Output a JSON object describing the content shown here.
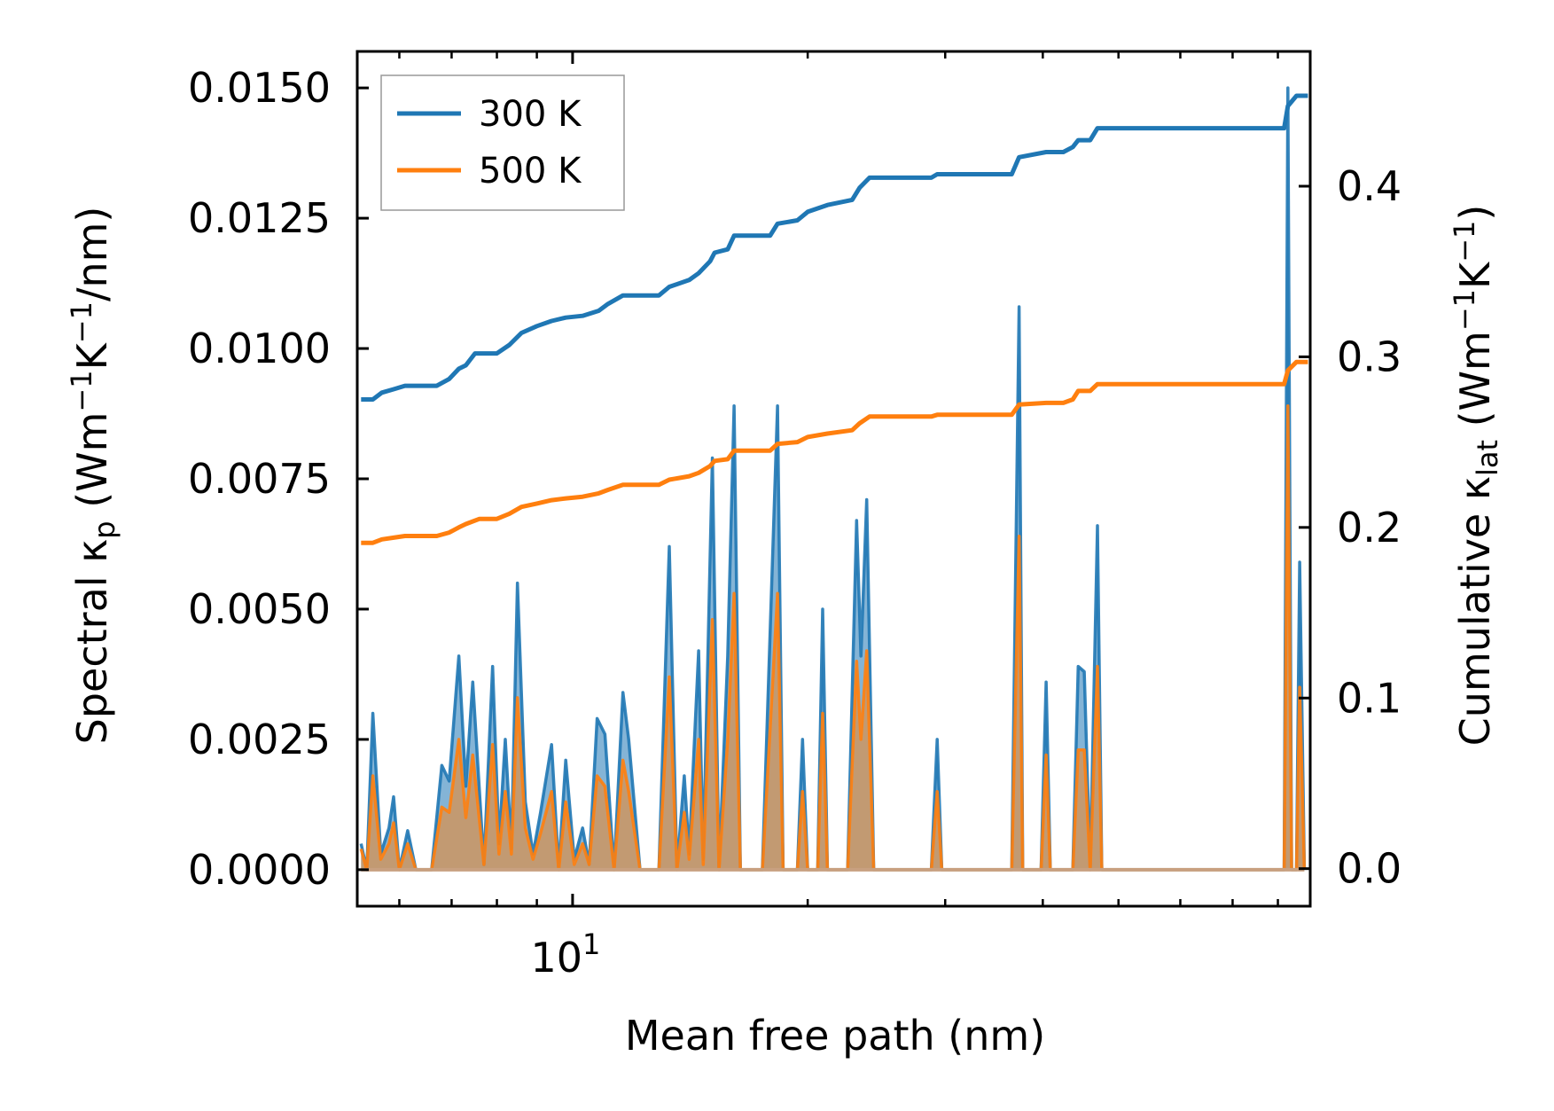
{
  "chart_data": {
    "type": "line",
    "xscale": "log",
    "xlabel": "Mean free path (nm)",
    "xlim": [
      5.3,
      88
    ],
    "x_tick_labels": [
      {
        "value": 10,
        "label": "10",
        "sup": "1"
      }
    ],
    "y_left": {
      "label_parts": [
        "Spectral κ",
        "p",
        " (Wm",
        "−1",
        "K",
        "−1",
        "/nm)"
      ],
      "lim": [
        -0.0007,
        0.0157
      ],
      "ticks": [
        0.0,
        0.0025,
        0.005,
        0.0075,
        0.01,
        0.0125,
        0.015
      ],
      "tick_labels": [
        "0.0000",
        "0.0025",
        "0.0050",
        "0.0075",
        "0.0100",
        "0.0125",
        "0.0150"
      ]
    },
    "y_right": {
      "label_parts": [
        "Cumulative κ",
        "lat",
        " (Wm",
        "−1",
        "K",
        "−1",
        ")"
      ],
      "lim": [
        -0.022,
        0.479
      ],
      "ticks": [
        0.0,
        0.1,
        0.2,
        0.3,
        0.4
      ],
      "tick_labels": [
        "0.0",
        "0.1",
        "0.2",
        "0.3",
        "0.4"
      ]
    },
    "legend": {
      "position": "top-left",
      "entries": [
        {
          "label": "300 K",
          "color": "#1f77b4"
        },
        {
          "label": "500 K",
          "color": "#ff7f0e"
        }
      ]
    },
    "series": [
      {
        "name": "300 K",
        "color": "#1f77b4",
        "spectral": [
          [
            5.36,
            0.0005
          ],
          [
            5.45,
            0
          ],
          [
            5.55,
            0.003
          ],
          [
            5.68,
            0.0003
          ],
          [
            5.82,
            0.0008
          ],
          [
            5.9,
            0.0014
          ],
          [
            6.0,
            0
          ],
          [
            6.15,
            0.00075
          ],
          [
            6.3,
            0
          ],
          [
            6.6,
            0
          ],
          [
            6.8,
            0.002
          ],
          [
            6.95,
            0.0017
          ],
          [
            7.15,
            0.0041
          ],
          [
            7.3,
            0.0016
          ],
          [
            7.45,
            0.0036
          ],
          [
            7.7,
            0.0001
          ],
          [
            7.9,
            0.0039
          ],
          [
            8.05,
            0.0005
          ],
          [
            8.2,
            0.0025
          ],
          [
            8.35,
            0.0004
          ],
          [
            8.5,
            0.0055
          ],
          [
            8.7,
            0.0013
          ],
          [
            8.9,
            0.0003
          ],
          [
            9.1,
            0.0011
          ],
          [
            9.4,
            0.0024
          ],
          [
            9.6,
            0
          ],
          [
            9.8,
            0.0021
          ],
          [
            10.05,
            0.0002
          ],
          [
            10.3,
            0.0008
          ],
          [
            10.5,
            0.0001
          ],
          [
            10.75,
            0.0029
          ],
          [
            11.0,
            0.0026
          ],
          [
            11.3,
            0
          ],
          [
            11.6,
            0.0034
          ],
          [
            11.8,
            0.0025
          ],
          [
            12.2,
            0
          ],
          [
            12.9,
            0
          ],
          [
            13.3,
            0.0062
          ],
          [
            13.6,
            0
          ],
          [
            13.9,
            0.0018
          ],
          [
            14.1,
            0.0003
          ],
          [
            14.5,
            0.0042
          ],
          [
            14.7,
            0.0002
          ],
          [
            15.1,
            0.0079
          ],
          [
            15.4,
            0
          ],
          [
            15.8,
            0.0041
          ],
          [
            16.1,
            0.0089
          ],
          [
            16.4,
            0
          ],
          [
            17.5,
            0
          ],
          [
            18.3,
            0.0089
          ],
          [
            18.6,
            0
          ],
          [
            19.4,
            0
          ],
          [
            19.7,
            0.0025
          ],
          [
            20.0,
            0
          ],
          [
            20.6,
            0
          ],
          [
            20.9,
            0.005
          ],
          [
            21.2,
            0
          ],
          [
            22.5,
            0
          ],
          [
            23.1,
            0.0067
          ],
          [
            23.4,
            0.0041
          ],
          [
            23.8,
            0.0071
          ],
          [
            24.3,
            0
          ],
          [
            28.8,
            0
          ],
          [
            29.3,
            0.0025
          ],
          [
            29.7,
            0
          ],
          [
            36.5,
            0
          ],
          [
            37.3,
            0.0108
          ],
          [
            37.7,
            0
          ],
          [
            39.8,
            0
          ],
          [
            40.4,
            0.0036
          ],
          [
            40.9,
            0
          ],
          [
            43.7,
            0
          ],
          [
            44.4,
            0.0039
          ],
          [
            45.2,
            0.0038
          ],
          [
            46.0,
            0
          ],
          [
            47.0,
            0.0066
          ],
          [
            47.6,
            0
          ],
          [
            81.5,
            0
          ],
          [
            82.4,
            0.015
          ],
          [
            83.3,
            0
          ],
          [
            84.5,
            0
          ],
          [
            85.3,
            0.0059
          ],
          [
            86.5,
            0
          ]
        ],
        "cumulative": [
          [
            5.36,
            0.275
          ],
          [
            5.55,
            0.275
          ],
          [
            5.7,
            0.279
          ],
          [
            5.9,
            0.281
          ],
          [
            6.1,
            0.283
          ],
          [
            6.7,
            0.283
          ],
          [
            6.95,
            0.287
          ],
          [
            7.15,
            0.293
          ],
          [
            7.3,
            0.295
          ],
          [
            7.5,
            0.302
          ],
          [
            8.0,
            0.302
          ],
          [
            8.3,
            0.307
          ],
          [
            8.6,
            0.314
          ],
          [
            9.0,
            0.318
          ],
          [
            9.4,
            0.321
          ],
          [
            9.8,
            0.323
          ],
          [
            10.3,
            0.324
          ],
          [
            10.8,
            0.327
          ],
          [
            11.1,
            0.331
          ],
          [
            11.6,
            0.336
          ],
          [
            12.9,
            0.336
          ],
          [
            13.3,
            0.341
          ],
          [
            14.1,
            0.345
          ],
          [
            14.5,
            0.349
          ],
          [
            15.0,
            0.356
          ],
          [
            15.2,
            0.361
          ],
          [
            15.8,
            0.363
          ],
          [
            16.1,
            0.371
          ],
          [
            17.9,
            0.371
          ],
          [
            18.3,
            0.378
          ],
          [
            19.4,
            0.38
          ],
          [
            20.0,
            0.385
          ],
          [
            21.2,
            0.389
          ],
          [
            22.8,
            0.392
          ],
          [
            23.3,
            0.399
          ],
          [
            24.0,
            0.405
          ],
          [
            28.8,
            0.405
          ],
          [
            29.3,
            0.407
          ],
          [
            36.5,
            0.407
          ],
          [
            37.3,
            0.417
          ],
          [
            40.4,
            0.42
          ],
          [
            42.5,
            0.42
          ],
          [
            43.7,
            0.423
          ],
          [
            44.4,
            0.427
          ],
          [
            46.0,
            0.427
          ],
          [
            47.0,
            0.434
          ],
          [
            81.5,
            0.434
          ],
          [
            82.4,
            0.447
          ],
          [
            84.5,
            0.453
          ],
          [
            87.4,
            0.453
          ]
        ]
      },
      {
        "name": "500 K",
        "color": "#ff7f0e",
        "spectral": [
          [
            5.36,
            0.0004
          ],
          [
            5.45,
            0
          ],
          [
            5.55,
            0.0018
          ],
          [
            5.68,
            0.0002
          ],
          [
            5.82,
            0.0005
          ],
          [
            5.9,
            0.0009
          ],
          [
            6.0,
            0
          ],
          [
            6.15,
            0.0005
          ],
          [
            6.3,
            0
          ],
          [
            6.6,
            0
          ],
          [
            6.8,
            0.0012
          ],
          [
            6.95,
            0.0011
          ],
          [
            7.15,
            0.0025
          ],
          [
            7.3,
            0.001
          ],
          [
            7.45,
            0.0022
          ],
          [
            7.7,
            0.0001
          ],
          [
            7.9,
            0.0024
          ],
          [
            8.05,
            0.0003
          ],
          [
            8.2,
            0.0015
          ],
          [
            8.35,
            0.0003
          ],
          [
            8.5,
            0.0033
          ],
          [
            8.7,
            0.0008
          ],
          [
            8.9,
            0.0002
          ],
          [
            9.1,
            0.0007
          ],
          [
            9.4,
            0.0015
          ],
          [
            9.6,
            0
          ],
          [
            9.8,
            0.0013
          ],
          [
            10.05,
            0.0001
          ],
          [
            10.3,
            0.0005
          ],
          [
            10.5,
            0.0001
          ],
          [
            10.75,
            0.0018
          ],
          [
            11.0,
            0.0016
          ],
          [
            11.3,
            0
          ],
          [
            11.6,
            0.0021
          ],
          [
            11.8,
            0.0015
          ],
          [
            12.2,
            0
          ],
          [
            12.9,
            0
          ],
          [
            13.3,
            0.0037
          ],
          [
            13.6,
            0
          ],
          [
            13.9,
            0.0011
          ],
          [
            14.1,
            0.0002
          ],
          [
            14.5,
            0.0025
          ],
          [
            14.7,
            0.0001
          ],
          [
            15.1,
            0.0048
          ],
          [
            15.4,
            0
          ],
          [
            15.8,
            0.0025
          ],
          [
            16.1,
            0.0053
          ],
          [
            16.4,
            0
          ],
          [
            17.5,
            0
          ],
          [
            18.3,
            0.0053
          ],
          [
            18.6,
            0
          ],
          [
            19.4,
            0
          ],
          [
            19.7,
            0.0015
          ],
          [
            20.0,
            0
          ],
          [
            20.6,
            0
          ],
          [
            20.9,
            0.003
          ],
          [
            21.2,
            0
          ],
          [
            22.5,
            0
          ],
          [
            23.1,
            0.004
          ],
          [
            23.4,
            0.0025
          ],
          [
            23.8,
            0.0042
          ],
          [
            24.3,
            0
          ],
          [
            28.8,
            0
          ],
          [
            29.3,
            0.0015
          ],
          [
            29.7,
            0
          ],
          [
            36.5,
            0
          ],
          [
            37.3,
            0.0064
          ],
          [
            37.7,
            0
          ],
          [
            39.8,
            0
          ],
          [
            40.4,
            0.0022
          ],
          [
            40.9,
            0
          ],
          [
            43.7,
            0
          ],
          [
            44.4,
            0.0023
          ],
          [
            45.2,
            0.0023
          ],
          [
            46.0,
            0
          ],
          [
            47.0,
            0.0039
          ],
          [
            47.6,
            0
          ],
          [
            81.5,
            0
          ],
          [
            82.4,
            0.0089
          ],
          [
            83.3,
            0
          ],
          [
            84.5,
            0
          ],
          [
            85.3,
            0.0035
          ],
          [
            86.5,
            0
          ]
        ],
        "cumulative": [
          [
            5.36,
            0.191
          ],
          [
            5.55,
            0.191
          ],
          [
            5.7,
            0.193
          ],
          [
            5.9,
            0.194
          ],
          [
            6.1,
            0.195
          ],
          [
            6.7,
            0.195
          ],
          [
            6.95,
            0.197
          ],
          [
            7.15,
            0.2
          ],
          [
            7.3,
            0.202
          ],
          [
            7.6,
            0.205
          ],
          [
            8.0,
            0.205
          ],
          [
            8.3,
            0.208
          ],
          [
            8.6,
            0.212
          ],
          [
            9.0,
            0.214
          ],
          [
            9.4,
            0.216
          ],
          [
            9.8,
            0.217
          ],
          [
            10.3,
            0.218
          ],
          [
            10.8,
            0.22
          ],
          [
            11.1,
            0.222
          ],
          [
            11.6,
            0.225
          ],
          [
            12.9,
            0.225
          ],
          [
            13.3,
            0.228
          ],
          [
            14.1,
            0.23
          ],
          [
            14.5,
            0.232
          ],
          [
            15.0,
            0.236
          ],
          [
            15.2,
            0.239
          ],
          [
            15.8,
            0.24
          ],
          [
            16.1,
            0.245
          ],
          [
            17.9,
            0.245
          ],
          [
            18.3,
            0.249
          ],
          [
            19.4,
            0.25
          ],
          [
            20.0,
            0.253
          ],
          [
            21.2,
            0.255
          ],
          [
            22.8,
            0.257
          ],
          [
            23.3,
            0.261
          ],
          [
            24.0,
            0.265
          ],
          [
            28.8,
            0.265
          ],
          [
            29.3,
            0.266
          ],
          [
            36.5,
            0.266
          ],
          [
            37.3,
            0.272
          ],
          [
            40.4,
            0.273
          ],
          [
            42.5,
            0.273
          ],
          [
            43.7,
            0.275
          ],
          [
            44.4,
            0.28
          ],
          [
            46.0,
            0.28
          ],
          [
            47.0,
            0.284
          ],
          [
            81.5,
            0.284
          ],
          [
            82.4,
            0.292
          ],
          [
            84.5,
            0.297
          ],
          [
            87.4,
            0.297
          ]
        ]
      }
    ]
  }
}
